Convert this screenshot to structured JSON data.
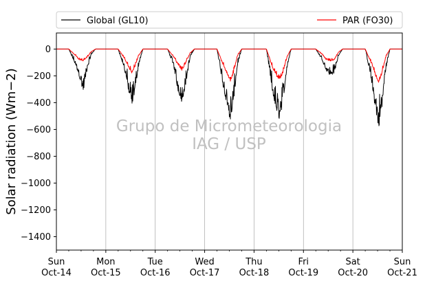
{
  "chart_data": {
    "type": "line",
    "ylabel": "Solar radiation (Wm−2)",
    "ylim": [
      -1500,
      120
    ],
    "yticks": [
      0,
      -200,
      -400,
      -600,
      -800,
      -1000,
      -1200,
      -1400
    ],
    "ytick_labels": [
      "0",
      "−200",
      "−400",
      "−600",
      "−800",
      "−1000",
      "−1200",
      "−1400"
    ],
    "xlim": [
      "Oct-14",
      "Oct-21"
    ],
    "xticks": [
      {
        "day": "Sun",
        "date": "Oct-14"
      },
      {
        "day": "Mon",
        "date": "Oct-15"
      },
      {
        "day": "Tue",
        "date": "Oct-16"
      },
      {
        "day": "Wed",
        "date": "Oct-17"
      },
      {
        "day": "Thu",
        "date": "Oct-18"
      },
      {
        "day": "Fri",
        "date": "Oct-19"
      },
      {
        "day": "Sat",
        "date": "Oct-20"
      },
      {
        "day": "Sun",
        "date": "Oct-21"
      }
    ],
    "grid": "vertical-major",
    "legend": {
      "placement": "top",
      "entries": [
        "Global (GL10)",
        "PAR (FO30)"
      ]
    },
    "series": [
      {
        "name": "Global (GL10)",
        "color": "#000000",
        "x": [
          "Oct-14 00:00",
          "Oct-14 06:00",
          "Oct-14 09:00",
          "Oct-14 11:00",
          "Oct-14 13:00",
          "Oct-14 15:00",
          "Oct-14 17:00",
          "Oct-14 19:00",
          "Oct-15 06:00",
          "Oct-15 09:00",
          "Oct-15 11:00",
          "Oct-15 12:30",
          "Oct-15 14:00",
          "Oct-15 16:00",
          "Oct-15 18:00",
          "Oct-16 06:00",
          "Oct-16 09:00",
          "Oct-16 11:00",
          "Oct-16 13:00",
          "Oct-16 15:00",
          "Oct-16 17:00",
          "Oct-16 19:00",
          "Oct-17 06:00",
          "Oct-17 09:00",
          "Oct-17 11:00",
          "Oct-17 12:30",
          "Oct-17 14:00",
          "Oct-17 16:00",
          "Oct-17 18:00",
          "Oct-18 06:00",
          "Oct-18 09:00",
          "Oct-18 11:00",
          "Oct-18 12:30",
          "Oct-18 14:00",
          "Oct-18 16:00",
          "Oct-18 18:00",
          "Oct-19 06:00",
          "Oct-19 09:00",
          "Oct-19 11:00",
          "Oct-19 13:00",
          "Oct-19 15:00",
          "Oct-19 17:00",
          "Oct-19 19:00",
          "Oct-20 06:00",
          "Oct-20 09:00",
          "Oct-20 11:00",
          "Oct-20 12:30",
          "Oct-20 14:00",
          "Oct-20 16:00",
          "Oct-20 18:00",
          "Oct-21 00:00"
        ],
        "values": [
          0,
          0,
          -110,
          -200,
          -320,
          -150,
          -40,
          0,
          0,
          -150,
          -310,
          -430,
          -330,
          -120,
          0,
          0,
          -130,
          -310,
          -400,
          -250,
          -60,
          0,
          0,
          -280,
          -430,
          -550,
          -400,
          -120,
          0,
          0,
          -330,
          -480,
          -530,
          -400,
          -140,
          0,
          0,
          -80,
          -160,
          -200,
          -180,
          -50,
          0,
          0,
          -240,
          -460,
          -590,
          -460,
          -150,
          0,
          0
        ]
      },
      {
        "name": "PAR (FO30)",
        "color": "#ff0000",
        "x": [
          "Oct-14 00:00",
          "Oct-14 06:00",
          "Oct-14 09:00",
          "Oct-14 11:00",
          "Oct-14 13:00",
          "Oct-14 15:00",
          "Oct-14 17:00",
          "Oct-14 19:00",
          "Oct-15 06:00",
          "Oct-15 09:00",
          "Oct-15 11:00",
          "Oct-15 12:30",
          "Oct-15 14:00",
          "Oct-15 16:00",
          "Oct-15 18:00",
          "Oct-16 06:00",
          "Oct-16 09:00",
          "Oct-16 11:00",
          "Oct-16 13:00",
          "Oct-16 15:00",
          "Oct-16 17:00",
          "Oct-16 19:00",
          "Oct-17 06:00",
          "Oct-17 09:00",
          "Oct-17 11:00",
          "Oct-17 12:30",
          "Oct-17 14:00",
          "Oct-17 16:00",
          "Oct-17 18:00",
          "Oct-18 06:00",
          "Oct-18 09:00",
          "Oct-18 11:00",
          "Oct-18 12:30",
          "Oct-18 14:00",
          "Oct-18 16:00",
          "Oct-18 18:00",
          "Oct-19 06:00",
          "Oct-19 09:00",
          "Oct-19 11:00",
          "Oct-19 13:00",
          "Oct-19 15:00",
          "Oct-19 17:00",
          "Oct-19 19:00",
          "Oct-20 06:00",
          "Oct-20 09:00",
          "Oct-20 11:00",
          "Oct-20 12:30",
          "Oct-20 14:00",
          "Oct-20 16:00",
          "Oct-20 18:00",
          "Oct-21 00:00"
        ],
        "values": [
          0,
          0,
          -45,
          -80,
          -90,
          -60,
          -20,
          0,
          0,
          -70,
          -130,
          -180,
          -140,
          -50,
          0,
          0,
          -60,
          -120,
          -160,
          -100,
          -30,
          0,
          0,
          -120,
          -190,
          -240,
          -180,
          -50,
          0,
          0,
          -140,
          -210,
          -230,
          -180,
          -60,
          0,
          0,
          -40,
          -80,
          -90,
          -80,
          -25,
          0,
          0,
          -110,
          -200,
          -250,
          -190,
          -60,
          0,
          0
        ]
      }
    ],
    "annotations": [
      "Grupo de Micrometeorologia",
      "IAG / USP"
    ]
  }
}
